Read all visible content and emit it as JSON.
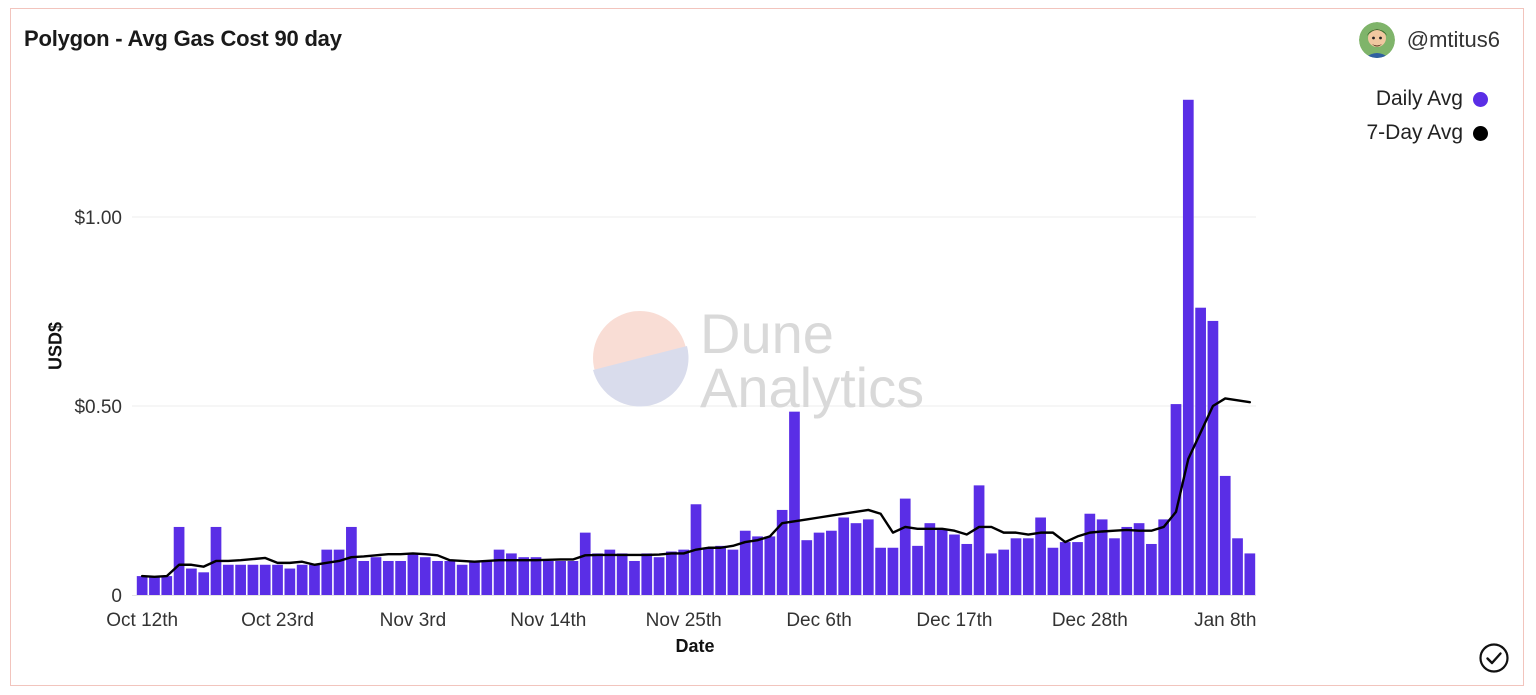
{
  "header": {
    "title": "Polygon - Avg Gas Cost 90 day",
    "author": "@mtitus6"
  },
  "watermark": {
    "line1": "Dune",
    "line2": "Analytics"
  },
  "colors": {
    "bar": "#5a2ee6",
    "line": "#000000",
    "grid": "#eeeeee"
  },
  "icons": {
    "avatar": "user-avatar-icon",
    "status": "check-circle-icon"
  },
  "chart_data": {
    "type": "bar",
    "title": "Polygon - Avg Gas Cost 90 day",
    "xlabel": "Date",
    "ylabel": "USD$",
    "ylim": [
      0,
      1.32
    ],
    "grid": true,
    "legend_position": "top-right",
    "y_ticks": [
      {
        "value": 0,
        "label": "0"
      },
      {
        "value": 0.5,
        "label": "$0.50"
      },
      {
        "value": 1.0,
        "label": "$1.00"
      }
    ],
    "x_ticks": [
      {
        "index": 0,
        "label": "Oct 12th"
      },
      {
        "index": 11,
        "label": "Oct 23rd"
      },
      {
        "index": 22,
        "label": "Nov 3rd"
      },
      {
        "index": 33,
        "label": "Nov 14th"
      },
      {
        "index": 44,
        "label": "Nov 25th"
      },
      {
        "index": 55,
        "label": "Dec 6th"
      },
      {
        "index": 66,
        "label": "Dec 17th"
      },
      {
        "index": 77,
        "label": "Dec 28th"
      },
      {
        "index": 88,
        "label": "Jan 8th"
      }
    ],
    "series": [
      {
        "name": "Daily Avg",
        "type": "bar",
        "color": "#5a2ee6",
        "values": [
          0.05,
          0.05,
          0.05,
          0.18,
          0.07,
          0.06,
          0.18,
          0.08,
          0.08,
          0.08,
          0.08,
          0.08,
          0.07,
          0.08,
          0.08,
          0.12,
          0.12,
          0.18,
          0.09,
          0.1,
          0.09,
          0.09,
          0.11,
          0.1,
          0.09,
          0.09,
          0.08,
          0.09,
          0.09,
          0.12,
          0.11,
          0.1,
          0.1,
          0.09,
          0.09,
          0.09,
          0.165,
          0.11,
          0.12,
          0.11,
          0.09,
          0.11,
          0.1,
          0.115,
          0.12,
          0.24,
          0.125,
          0.13,
          0.12,
          0.17,
          0.155,
          0.155,
          0.225,
          0.485,
          0.145,
          0.165,
          0.17,
          0.205,
          0.19,
          0.2,
          0.125,
          0.125,
          0.255,
          0.13,
          0.19,
          0.175,
          0.16,
          0.135,
          0.29,
          0.11,
          0.12,
          0.15,
          0.15,
          0.205,
          0.125,
          0.14,
          0.14,
          0.215,
          0.2,
          0.15,
          0.18,
          0.19,
          0.135,
          0.2,
          0.505,
          1.31,
          0.76,
          0.725,
          0.315,
          0.15,
          0.11
        ]
      },
      {
        "name": "7-Day Avg",
        "type": "line",
        "color": "#000000",
        "values": [
          0.05,
          0.048,
          0.05,
          0.08,
          0.08,
          0.075,
          0.09,
          0.09,
          0.092,
          0.095,
          0.098,
          0.085,
          0.085,
          0.088,
          0.08,
          0.085,
          0.09,
          0.1,
          0.102,
          0.105,
          0.108,
          0.108,
          0.11,
          0.108,
          0.105,
          0.092,
          0.09,
          0.088,
          0.09,
          0.092,
          0.092,
          0.092,
          0.092,
          0.093,
          0.094,
          0.094,
          0.105,
          0.106,
          0.106,
          0.106,
          0.106,
          0.106,
          0.107,
          0.11,
          0.11,
          0.12,
          0.125,
          0.125,
          0.13,
          0.14,
          0.145,
          0.155,
          0.19,
          0.195,
          0.2,
          0.205,
          0.21,
          0.215,
          0.22,
          0.225,
          0.215,
          0.165,
          0.18,
          0.175,
          0.175,
          0.175,
          0.17,
          0.16,
          0.18,
          0.18,
          0.165,
          0.165,
          0.16,
          0.165,
          0.165,
          0.14,
          0.155,
          0.165,
          0.168,
          0.17,
          0.172,
          0.17,
          0.17,
          0.18,
          0.22,
          0.36,
          0.43,
          0.5,
          0.52,
          0.515,
          0.51
        ]
      }
    ]
  }
}
